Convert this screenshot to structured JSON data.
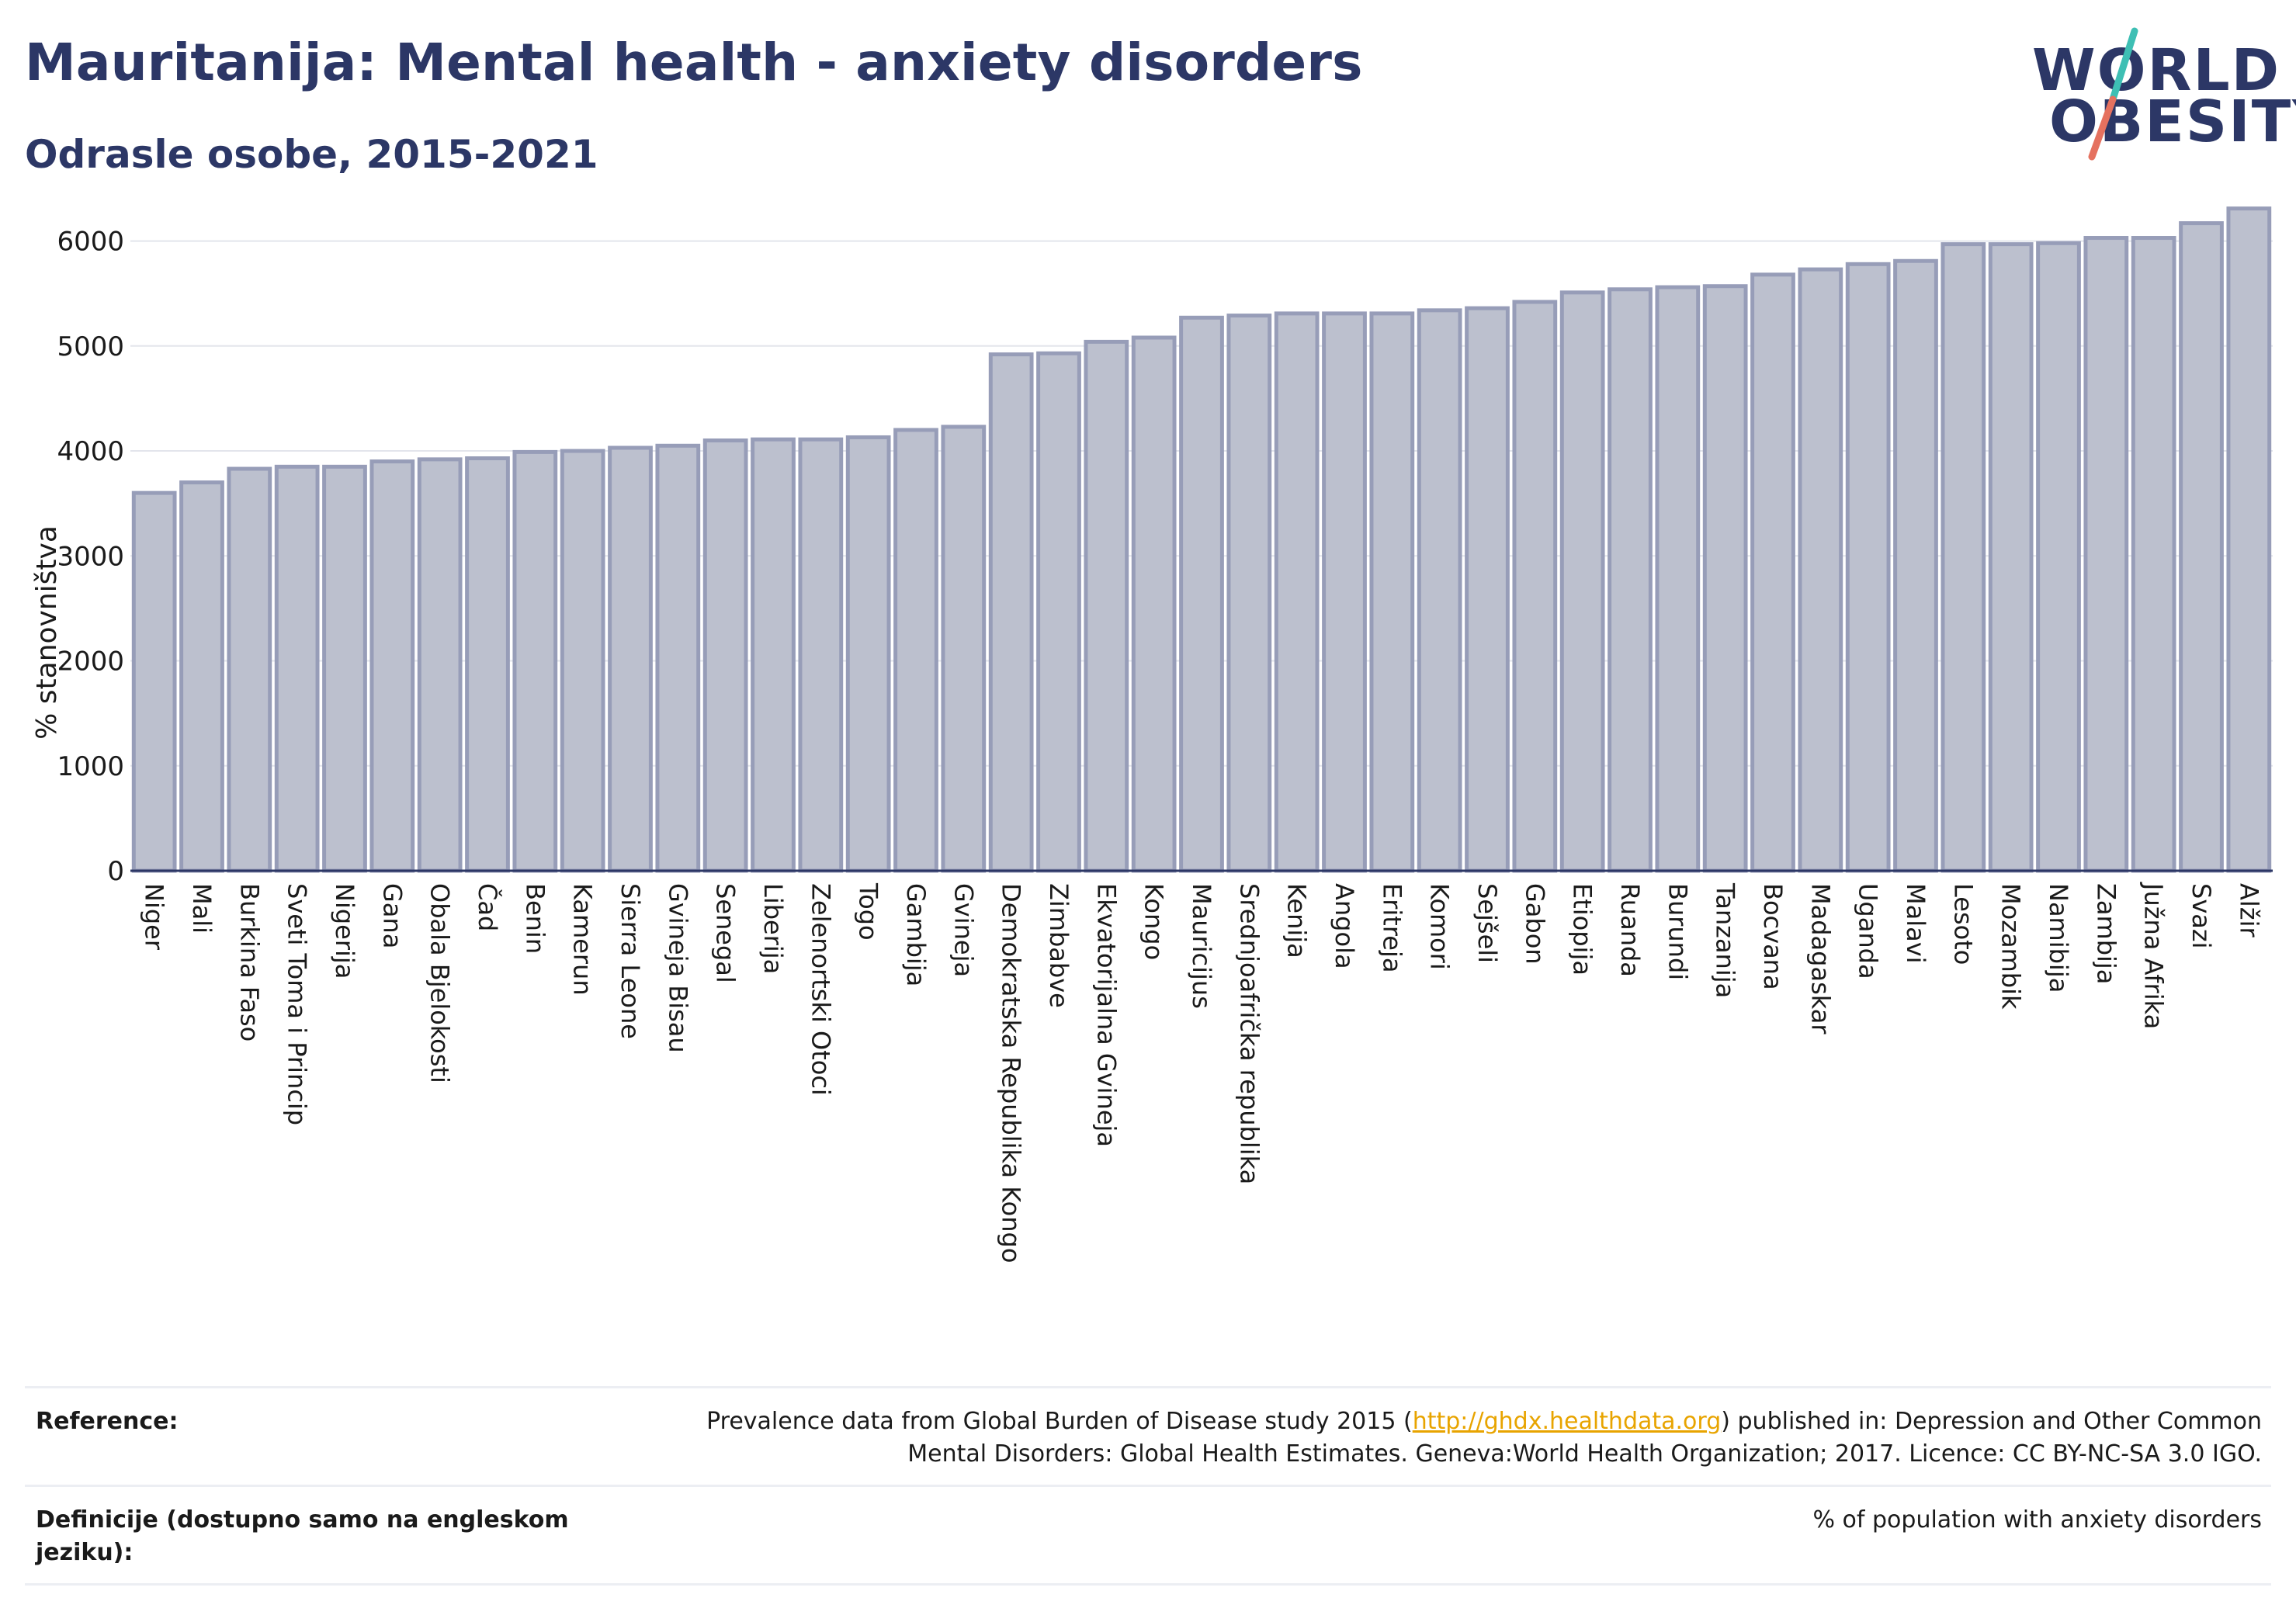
{
  "header": {
    "title": "Mauritanija: Mental health - anxiety disorders",
    "subtitle": "Odrasle osobe, 2015-2021"
  },
  "logo": {
    "line1": "WORLD",
    "line2": "OBESITY"
  },
  "colors": {
    "title": "#2c3766",
    "bar_fill": "#bcc0ce",
    "bar_stroke": "#979db8",
    "logo_slash_top": "#3ebfb4",
    "logo_slash_bottom": "#e5715f",
    "link": "#e8a400"
  },
  "chart_data": {
    "type": "bar",
    "ylabel": "% stanovništva",
    "ylim": [
      0,
      6300
    ],
    "yticks": [
      0,
      1000,
      2000,
      3000,
      4000,
      5000,
      6000
    ],
    "grid": true,
    "categories": [
      "Niger",
      "Mali",
      "Burkina Faso",
      "Sveti Toma i Princip",
      "Nigerija",
      "Gana",
      "Obala Bjelokosti",
      "Čad",
      "Benin",
      "Kamerun",
      "Sierra Leone",
      "Gvineja Bisau",
      "Senegal",
      "Liberija",
      "Zelenortski Otoci",
      "Togo",
      "Gambija",
      "Gvineja",
      "Demokratska Republika Kongo",
      "Zimbabve",
      "Ekvatorijalna Gvineja",
      "Kongo",
      "Mauricijus",
      "Srednjoafrička republika",
      "Kenija",
      "Angola",
      "Eritreja",
      "Komori",
      "Sejšeli",
      "Gabon",
      "Etiopija",
      "Ruanda",
      "Burundi",
      "Tanzanija",
      "Bocvana",
      "Madagaskar",
      "Uganda",
      "Malavi",
      "Lesoto",
      "Mozambik",
      "Namibija",
      "Zambija",
      "Južna Afrika",
      "Svazi",
      "Alžir"
    ],
    "values": [
      3600,
      3700,
      3830,
      3850,
      3850,
      3900,
      3920,
      3930,
      3990,
      4000,
      4030,
      4050,
      4100,
      4110,
      4110,
      4130,
      4200,
      4230,
      4920,
      4930,
      5040,
      5080,
      5270,
      5290,
      5310,
      5310,
      5310,
      5340,
      5360,
      5420,
      5510,
      5540,
      5560,
      5570,
      5680,
      5730,
      5780,
      5810,
      5970,
      5970,
      5980,
      6030,
      6030,
      6170,
      6310
    ]
  },
  "footer": {
    "reference_label": "Reference:",
    "reference_pre": "Prevalence data from Global Burden of Disease study 2015 (",
    "reference_link": "http://ghdx.healthdata.org",
    "reference_post": ") published in: Depression and Other Common Mental Disorders: Global Health Estimates. Geneva:World Health Organization; 2017. Licence: CC BY-NC-SA 3.0 IGO.",
    "definition_label": "Definicije (dostupno samo na engleskom jeziku):",
    "definition_text": "% of population with anxiety disorders"
  }
}
